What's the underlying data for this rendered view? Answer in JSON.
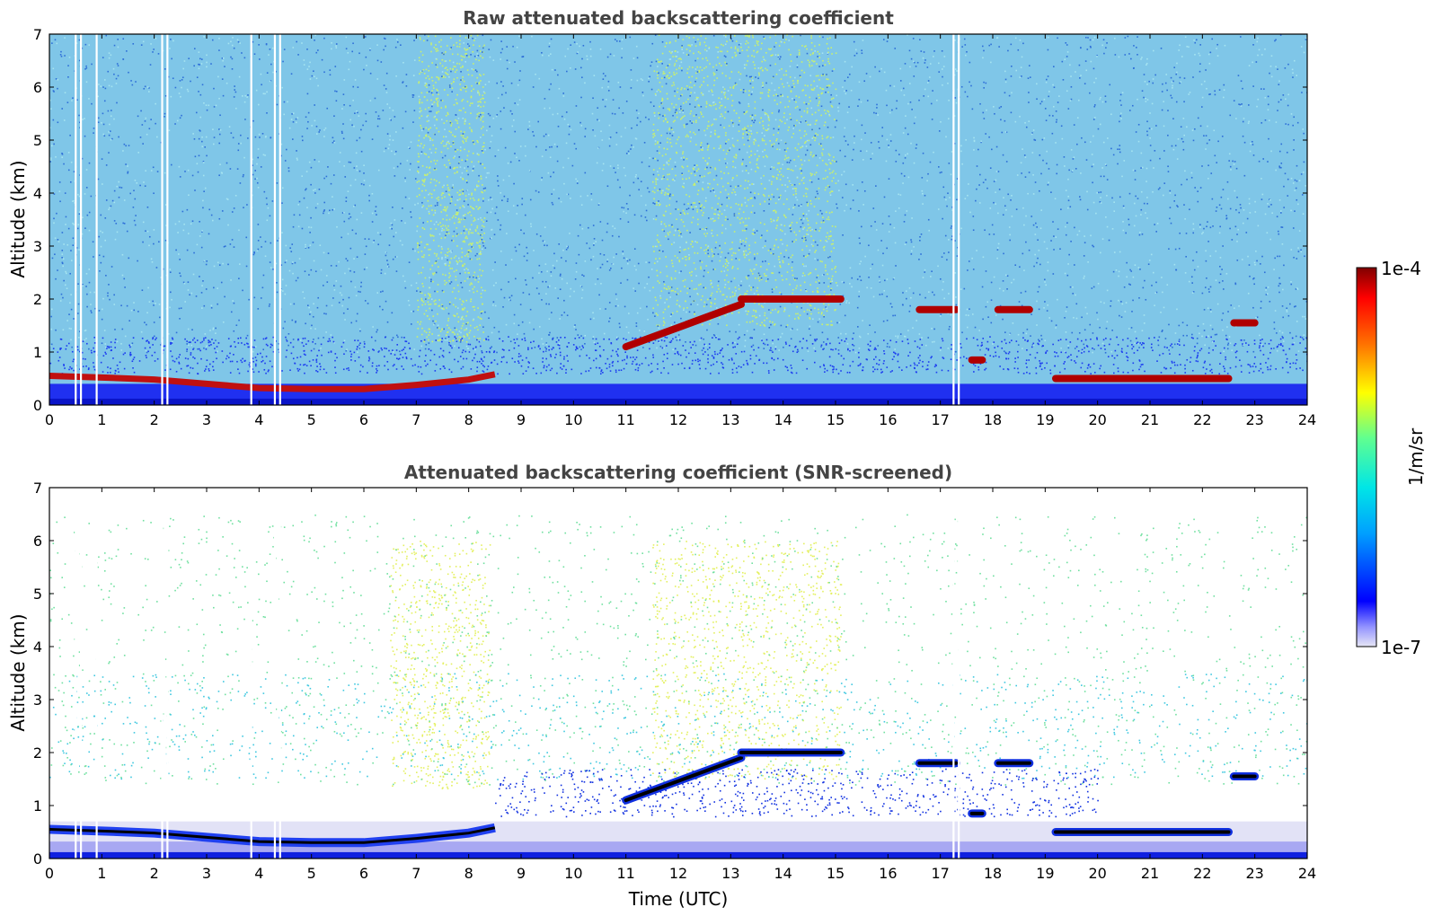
{
  "chart_data": [
    {
      "type": "heatmap",
      "title": "Raw attenuated backscattering coefficient",
      "xlabel": "",
      "ylabel": "Altitude (km)",
      "xlim": [
        0,
        24
      ],
      "ylim": [
        0,
        7
      ],
      "x_ticks": [
        "0",
        "1",
        "2",
        "3",
        "4",
        "5",
        "6",
        "7",
        "8",
        "9",
        "10",
        "11",
        "12",
        "13",
        "14",
        "15",
        "16",
        "17",
        "18",
        "19",
        "20",
        "21",
        "22",
        "23",
        "24"
      ],
      "y_ticks": [
        "0",
        "1",
        "2",
        "3",
        "4",
        "5",
        "6",
        "7"
      ],
      "features": {
        "boundary_layer_top_km": [
          {
            "x": 0.0,
            "y": 0.55
          },
          {
            "x": 1.0,
            "y": 0.52
          },
          {
            "x": 2.0,
            "y": 0.48
          },
          {
            "x": 3.0,
            "y": 0.4
          },
          {
            "x": 4.0,
            "y": 0.32
          },
          {
            "x": 5.0,
            "y": 0.3
          },
          {
            "x": 6.0,
            "y": 0.3
          },
          {
            "x": 7.0,
            "y": 0.38
          },
          {
            "x": 8.0,
            "y": 0.48
          },
          {
            "x": 8.5,
            "y": 0.58
          }
        ],
        "cloud_layers": [
          {
            "x_start": 11.0,
            "x_end": 13.2,
            "alt_start_km": 1.1,
            "alt_end_km": 1.9
          },
          {
            "x_start": 13.2,
            "x_end": 15.1,
            "alt_km": 2.0
          },
          {
            "x_start": 16.6,
            "x_end": 17.3,
            "alt_km": 1.8
          },
          {
            "x_start": 17.6,
            "x_end": 17.8,
            "alt_km": 0.85
          },
          {
            "x_start": 18.1,
            "x_end": 18.7,
            "alt_km": 1.8
          },
          {
            "x_start": 19.2,
            "x_end": 22.5,
            "alt_km": 0.5
          },
          {
            "x_start": 22.6,
            "x_end": 23.0,
            "alt_km": 1.55
          }
        ],
        "data_gaps_hours": [
          0.5,
          0.6,
          0.9,
          2.15,
          2.25,
          3.85,
          4.3,
          4.4,
          17.25,
          17.35
        ]
      }
    },
    {
      "type": "heatmap",
      "title": "Attenuated backscattering coefficient (SNR-screened)",
      "xlabel": "Time (UTC)",
      "ylabel": "Altitude (km)",
      "xlim": [
        0,
        24
      ],
      "ylim": [
        0,
        7
      ],
      "x_ticks": [
        "0",
        "1",
        "2",
        "3",
        "4",
        "5",
        "6",
        "7",
        "8",
        "9",
        "10",
        "11",
        "12",
        "13",
        "14",
        "15",
        "16",
        "17",
        "18",
        "19",
        "20",
        "21",
        "22",
        "23",
        "24"
      ],
      "y_ticks": [
        "0",
        "1",
        "2",
        "3",
        "4",
        "5",
        "6",
        "7"
      ]
    }
  ],
  "colorbar": {
    "label": "1/m/sr",
    "max_label": "1e-4",
    "min_label": "1e-7",
    "colors": [
      "#e6e6f5",
      "#c8c8f0",
      "#9696ff",
      "#3232ff",
      "#0000ff",
      "#0050ff",
      "#00a0ff",
      "#00e6e6",
      "#40ffb0",
      "#a0ff50",
      "#ffff00",
      "#ffb000",
      "#ff6000",
      "#ff0000",
      "#c00000",
      "#800000"
    ]
  }
}
